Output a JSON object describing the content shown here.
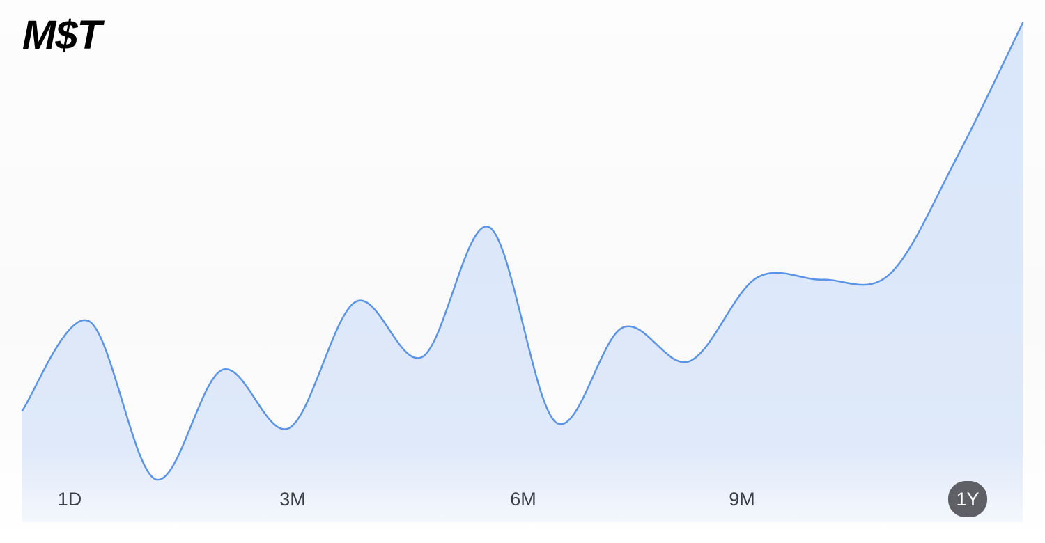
{
  "header": {
    "ticker": "M$T"
  },
  "colors": {
    "line": "#5b93e6",
    "fill": "#dde8f9",
    "active_bg": "#5e6066"
  },
  "range_selector": {
    "options": [
      {
        "label": "1D",
        "active": false
      },
      {
        "label": "3M",
        "active": false
      },
      {
        "label": "6M",
        "active": false
      },
      {
        "label": "9M",
        "active": false
      },
      {
        "label": "1Y",
        "active": true
      }
    ],
    "selected": "1Y"
  },
  "chart_data": {
    "type": "area",
    "title": "M$T",
    "xlabel": "",
    "ylabel": "",
    "grid": false,
    "x": [
      0,
      1,
      2,
      3,
      4,
      5,
      6,
      7,
      8,
      9,
      10,
      11,
      12,
      13,
      14,
      15
    ],
    "values": [
      17.2,
      31.0,
      6.6,
      23.5,
      14.5,
      34.0,
      25.5,
      45.5,
      15.4,
      30.0,
      24.8,
      37.6,
      37.4,
      38.2,
      56.0,
      77.0
    ],
    "ylim": [
      0,
      80
    ],
    "xlim": [
      0,
      15
    ],
    "range_labels": [
      "1D",
      "3M",
      "6M",
      "9M",
      "1Y"
    ]
  }
}
